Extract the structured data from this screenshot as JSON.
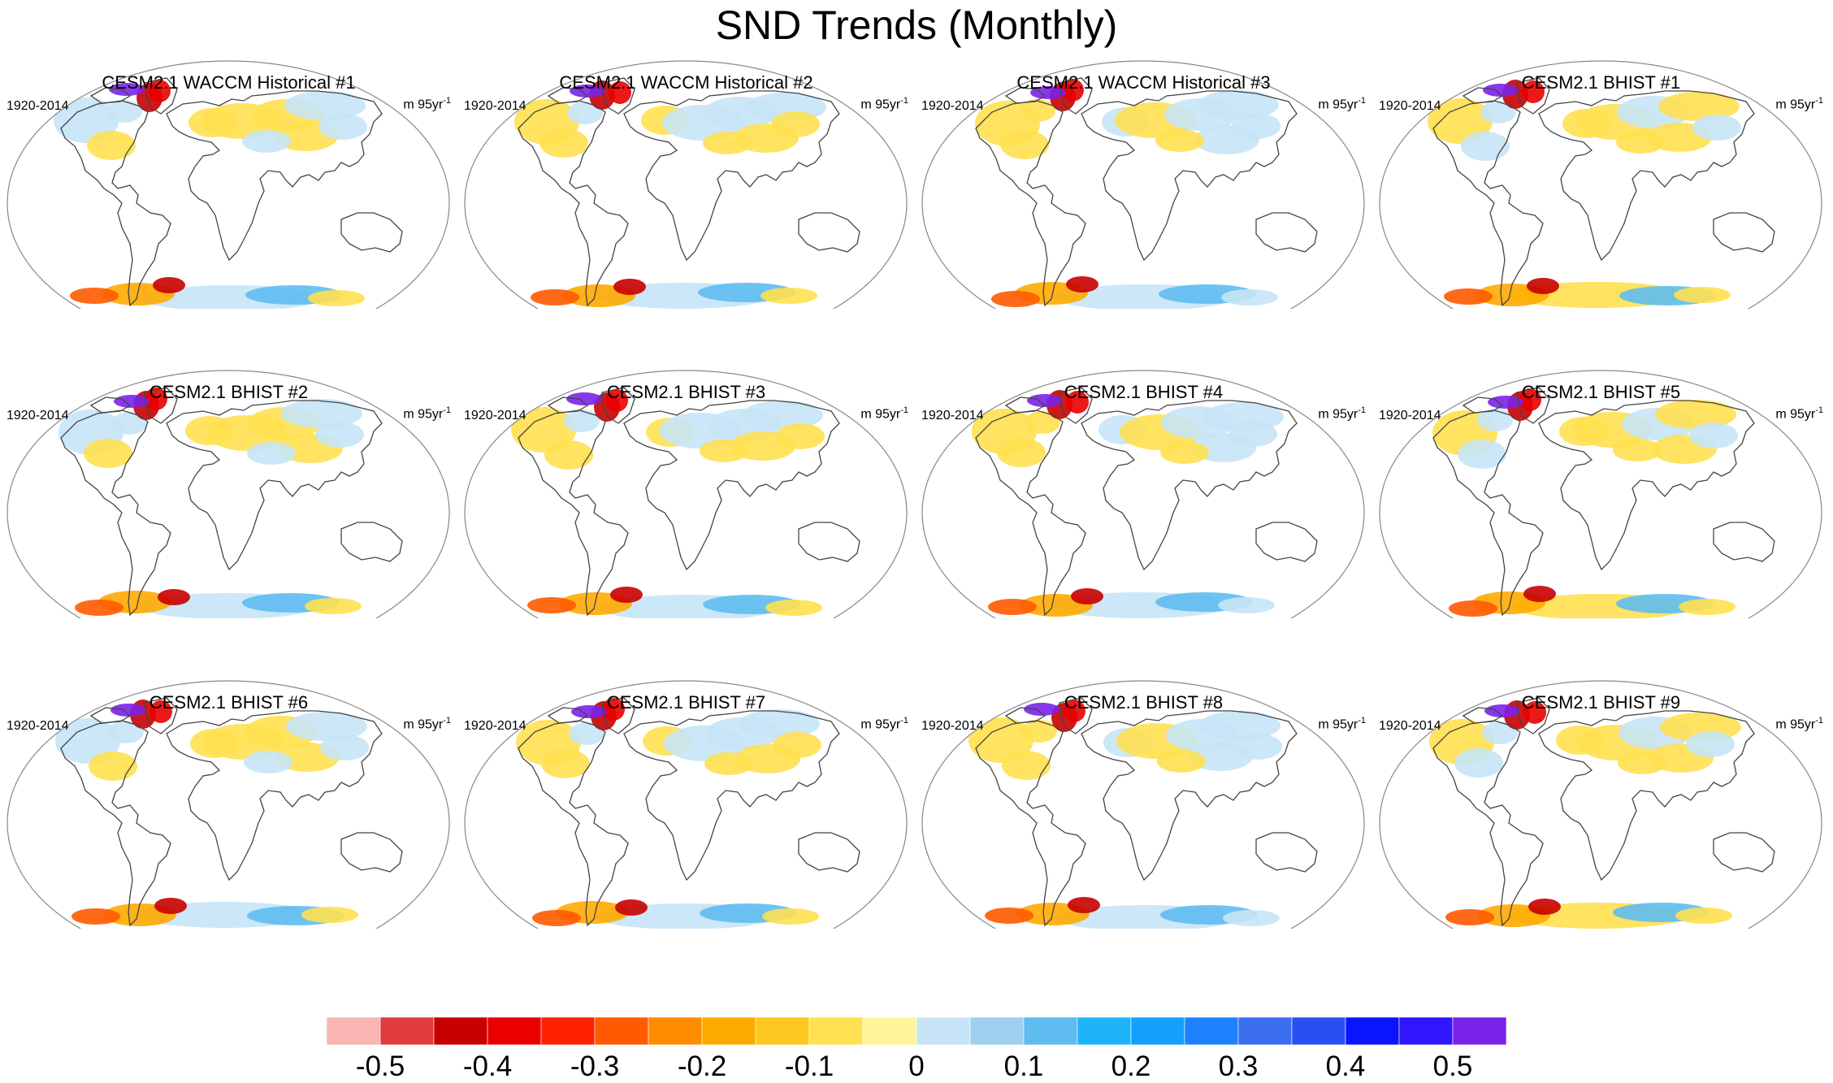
{
  "title": "SND Trends (Monthly)",
  "period": "1920-2014",
  "units_prefix": "m 95yr",
  "units_exp": "-1",
  "panels": [
    {
      "title": "CESM2.1 WACCM Historical #1"
    },
    {
      "title": "CESM2.1 WACCM Historical #2"
    },
    {
      "title": "CESM2.1 WACCM Historical #3"
    },
    {
      "title": "CESM2.1 BHIST #1"
    },
    {
      "title": "CESM2.1 BHIST #2"
    },
    {
      "title": "CESM2.1 BHIST #3"
    },
    {
      "title": "CESM2.1 BHIST #4"
    },
    {
      "title": "CESM2.1 BHIST #5"
    },
    {
      "title": "CESM2.1 BHIST #6"
    },
    {
      "title": "CESM2.1 BHIST #7"
    },
    {
      "title": "CESM2.1 BHIST #8"
    },
    {
      "title": "CESM2.1 BHIST #9"
    }
  ],
  "colorbar": {
    "colors": [
      "#f9b4b4",
      "#e03c3c",
      "#c80000",
      "#ea0000",
      "#ff2000",
      "#ff5a00",
      "#ff8c00",
      "#ffaa00",
      "#ffc820",
      "#ffe050",
      "#fff59a",
      "#c6e4f6",
      "#9fd0f0",
      "#5fbcf0",
      "#1eb4f8",
      "#14a0ff",
      "#1e82ff",
      "#3c6ef0",
      "#2850f0",
      "#0a14ff",
      "#3214ff",
      "#7a22e8"
    ],
    "labels": [
      "-0.5",
      "-0.4",
      "-0.3",
      "-0.2",
      "-0.1",
      "0",
      "0.1",
      "0.2",
      "0.3",
      "0.4",
      "0.5"
    ]
  },
  "palette": {
    "border": "#888888",
    "coast": "#444444"
  }
}
